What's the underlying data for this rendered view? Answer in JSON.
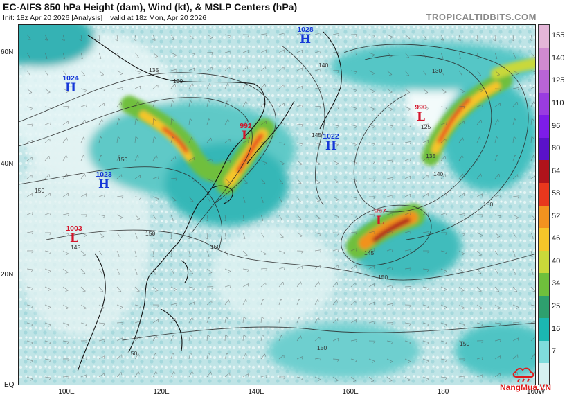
{
  "header": {
    "title": "EC-AIFS 850 hPa Height (dam), Wind (kt), & MSLP Centers (hPa)",
    "init": "Init: 18z Apr 20 2026",
    "analysis": "[Analysis]",
    "valid": "valid at 18z Mon, Apr 20 2026",
    "brand": "TROPICALTIDBITS.COM"
  },
  "axes": {
    "lat_labels": [
      "60N",
      "40N",
      "20N",
      "EQ"
    ],
    "lon_labels": [
      "100E",
      "120E",
      "140E",
      "160E",
      "180",
      "160W"
    ]
  },
  "pressure_centers": [
    {
      "type": "H",
      "pressure": "1028",
      "symbol": "H"
    },
    {
      "type": "H",
      "pressure": "1024",
      "symbol": "H"
    },
    {
      "type": "H",
      "pressure": "1023",
      "symbol": "H"
    },
    {
      "type": "H",
      "pressure": "1022",
      "symbol": "H"
    },
    {
      "type": "L",
      "pressure": "992",
      "symbol": "L"
    },
    {
      "type": "L",
      "pressure": "990",
      "symbol": "L"
    },
    {
      "type": "L",
      "pressure": "997",
      "symbol": "L"
    },
    {
      "type": "L",
      "pressure": "1003",
      "symbol": "L"
    }
  ],
  "contour_labels": [
    "135",
    "130",
    "140",
    "145",
    "150",
    "130",
    "125",
    "135",
    "140",
    "150",
    "150",
    "150",
    "150",
    "150",
    "145",
    "150",
    "145",
    "150",
    "150"
  ],
  "colorbar": {
    "labels": [
      "155",
      "140",
      "125",
      "110",
      "96",
      "80",
      "64",
      "58",
      "52",
      "46",
      "40",
      "34",
      "25",
      "16",
      "7"
    ],
    "colors": [
      "#e4b6d8",
      "#d08ad0",
      "#b864d6",
      "#9a3ce0",
      "#7d1ce8",
      "#5a12c8",
      "#b0131b",
      "#e8371d",
      "#f2921f",
      "#f6c529",
      "#c9d83a",
      "#6fbf3c",
      "#2e9f6e",
      "#1bb7b1",
      "#7fdcdc",
      "#d6f1f1"
    ]
  },
  "watermark": {
    "text": "NangMua.VN"
  }
}
